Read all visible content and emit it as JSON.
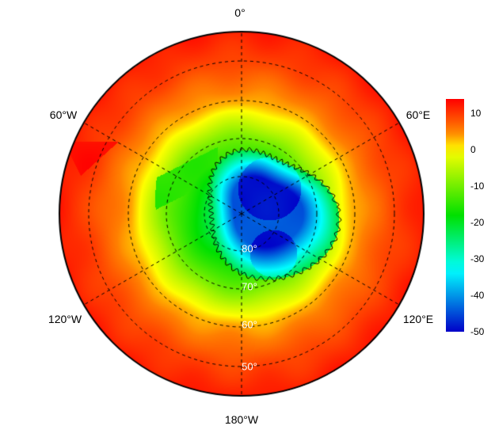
{
  "map": {
    "projection": "south polar stereographic",
    "meridian_labels": [
      "0°",
      "60°E",
      "120°E",
      "180°W",
      "120°W",
      "60°W"
    ],
    "latitude_labels": [
      "80°",
      "70°",
      "60°",
      "50°"
    ],
    "grid": "dashed"
  },
  "colorbar": {
    "min": -50,
    "max": 14,
    "tick_labels": [
      "10",
      "0",
      "-10",
      "-20",
      "-30",
      "-40",
      "-50"
    ],
    "colormap": [
      "#0000c8",
      "#00ffff",
      "#00e000",
      "#ffff00",
      "#ff8000",
      "#ff0000"
    ]
  }
}
